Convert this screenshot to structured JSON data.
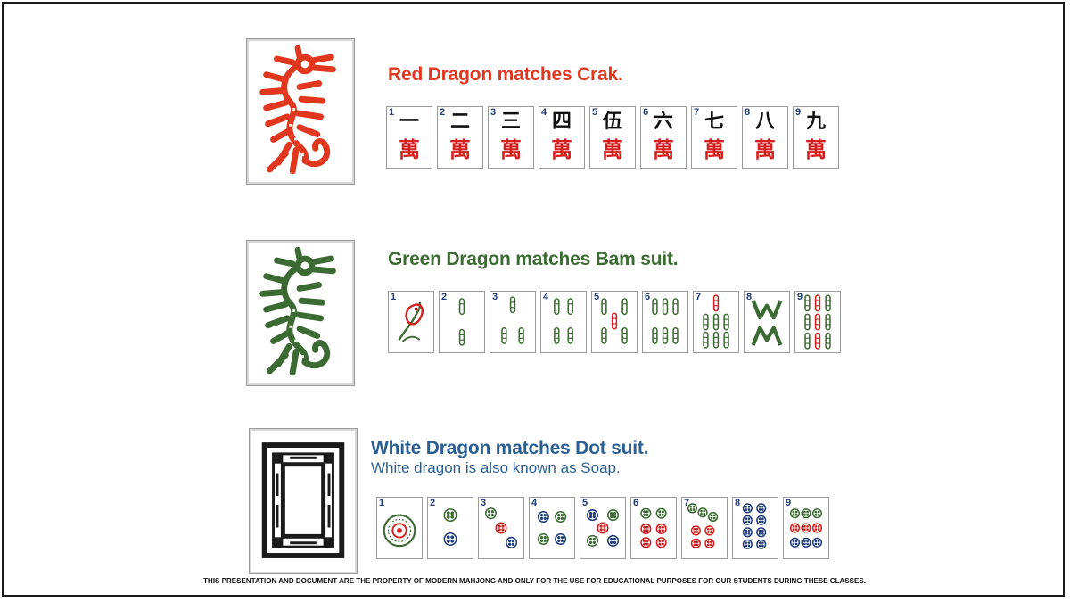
{
  "colors": {
    "red": "#e0371e",
    "green": "#3b6b32",
    "blue": "#2a5f94",
    "ink": "#111111"
  },
  "sections": {
    "red": {
      "title": "Red Dragon matches Crak.",
      "dragon_icon": "red-dragon-icon",
      "tiles": [
        {
          "num": "1",
          "glyph": "一",
          "suit": "萬"
        },
        {
          "num": "2",
          "glyph": "二",
          "suit": "萬"
        },
        {
          "num": "3",
          "glyph": "三",
          "suit": "萬"
        },
        {
          "num": "4",
          "glyph": "四",
          "suit": "萬"
        },
        {
          "num": "5",
          "glyph": "伍",
          "suit": "萬"
        },
        {
          "num": "6",
          "glyph": "六",
          "suit": "萬"
        },
        {
          "num": "7",
          "glyph": "七",
          "suit": "萬"
        },
        {
          "num": "8",
          "glyph": "八",
          "suit": "萬"
        },
        {
          "num": "9",
          "glyph": "九",
          "suit": "萬"
        }
      ]
    },
    "green": {
      "title": "Green Dragon matches Bam suit.",
      "dragon_icon": "green-dragon-icon",
      "tiles": [
        {
          "num": "1"
        },
        {
          "num": "2"
        },
        {
          "num": "3"
        },
        {
          "num": "4"
        },
        {
          "num": "5"
        },
        {
          "num": "6"
        },
        {
          "num": "7"
        },
        {
          "num": "8"
        },
        {
          "num": "9"
        }
      ]
    },
    "white": {
      "title": "White Dragon matches Dot suit.",
      "subtitle": "White dragon is also known as Soap.",
      "dragon_icon": "white-dragon-icon",
      "tiles": [
        {
          "num": "1"
        },
        {
          "num": "2"
        },
        {
          "num": "3"
        },
        {
          "num": "4"
        },
        {
          "num": "5"
        },
        {
          "num": "6"
        },
        {
          "num": "7"
        },
        {
          "num": "8"
        },
        {
          "num": "9"
        }
      ]
    }
  },
  "footer": "THIS PRESENTATION AND DOCUMENT ARE THE PROPERTY OF MODERN MAHJONG AND ONLY FOR THE USE FOR EDUCATIONAL PURPOSES FOR OUR STUDENTS DURING THESE CLASSES."
}
